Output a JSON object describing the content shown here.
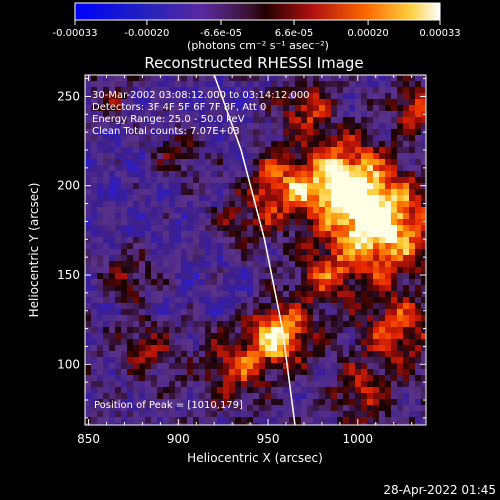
{
  "colorbar": {
    "tick_labels": [
      "-0.00033",
      "-0.00020",
      "-6.6e-05",
      "6.6e-05",
      "0.00020",
      "0.00033"
    ],
    "tick_values": [
      -0.00033,
      -0.0002,
      -6.6e-05,
      6.6e-05,
      0.0002,
      0.00033
    ],
    "range": [
      -0.00033,
      0.00033
    ],
    "units_label": "(photons cm⁻² s⁻¹ asec⁻²)"
  },
  "title": "Reconstructed RHESSI Image",
  "annotation": {
    "line1": "30-Mar-2002 03:08:12.000 to 03:14:12.000",
    "line2": "Detectors: 3F 4F 5F 6F 7F 8F, Att 0",
    "line3": "Energy Range: 25.0 - 50.0 keV",
    "line4": "Clean    Total counts: 7.07E+03",
    "peak": "Position of Peak = [1010,179]"
  },
  "axes": {
    "xlabel": "Heliocentric X (arcsec)",
    "ylabel": "Heliocentric Y (arcsec)",
    "xlim": [
      848,
      1038
    ],
    "ylim": [
      66,
      262
    ],
    "x_ticks": [
      850,
      900,
      950,
      1000
    ],
    "y_ticks": [
      100,
      150,
      200,
      250
    ]
  },
  "footer": {
    "timestamp": "28-Apr-2022 01:45"
  },
  "image_data": {
    "type": "heatmap",
    "colormap": "blue-purple-red-yellow-white",
    "peak_position": [
      1010,
      179
    ],
    "limb_curve": [
      [
        920,
        262
      ],
      [
        935,
        220
      ],
      [
        948,
        170
      ],
      [
        958,
        120
      ],
      [
        965,
        66
      ]
    ]
  }
}
